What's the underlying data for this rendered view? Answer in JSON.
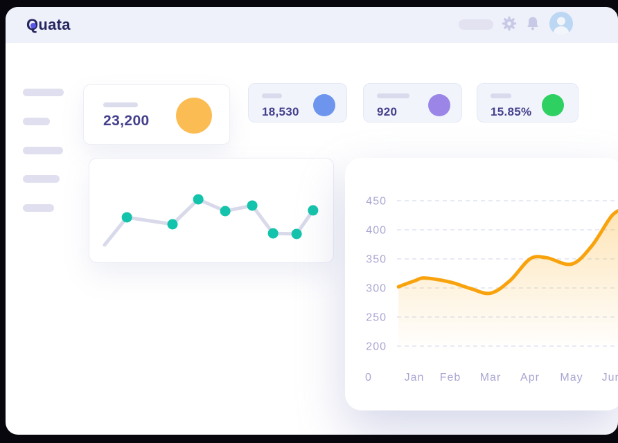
{
  "brand": {
    "name": "Quata",
    "color": "#26265E",
    "dot_color": "#5856E8"
  },
  "header": {
    "icons": [
      "nav-placeholder",
      "gear-icon",
      "bell-icon",
      "user-avatar"
    ]
  },
  "sidebar": {
    "items": 5,
    "note_labels": []
  },
  "stats": [
    {
      "value": "23,200",
      "accent": "#FBBD53"
    },
    {
      "value": "18,530",
      "accent": "#6D95EE"
    },
    {
      "value": "920",
      "accent": "#9B86E8"
    },
    {
      "value": "15.85%",
      "accent": "#2ED161"
    }
  ],
  "chart_data": [
    {
      "id": "sparkline",
      "type": "line",
      "title": "",
      "line_color": "#D8D9EA",
      "dot_color": "#14C3AB",
      "points_pct": [
        [
          6.2,
          82.2
        ],
        [
          15.3,
          55.9
        ],
        [
          33.9,
          62.5
        ],
        [
          44.4,
          38.8
        ],
        [
          55.4,
          50.0
        ],
        [
          66.4,
          44.7
        ],
        [
          74.9,
          71.1
        ],
        [
          84.5,
          71.7
        ],
        [
          91.2,
          49.3
        ]
      ]
    },
    {
      "id": "monthly-trend",
      "type": "area",
      "title": "",
      "x_ticks": [
        "0",
        "Jan",
        "Feb",
        "Mar",
        "Apr",
        "May",
        "Jun"
      ],
      "y_ticks": [
        "450",
        "400",
        "350",
        "300",
        "250",
        "200"
      ],
      "ylim": [
        200,
        450
      ],
      "grid": "dashed-horizontal",
      "legend": "none",
      "line_color": "#F8A30D",
      "fill_top": "rgba(249,166,15,0.30)",
      "fill_bottom": "rgba(249,166,15,0)",
      "label_color": "#A9A6D2",
      "grid_color": "#DFE4F0",
      "series": [
        {
          "name": "monthly-values",
          "months": [
            "Jan",
            "Feb",
            "Mar",
            "Apr",
            "May",
            "Jun"
          ],
          "values": [
            312,
            310,
            291,
            350,
            341,
            424
          ]
        }
      ],
      "curve_points": [
        [
          -0.44,
          302
        ],
        [
          0,
          312
        ],
        [
          0.3,
          317
        ],
        [
          1,
          310
        ],
        [
          1.5,
          299
        ],
        [
          2,
          291
        ],
        [
          2.5,
          313
        ],
        [
          3,
          350
        ],
        [
          3.4,
          352
        ],
        [
          4,
          341
        ],
        [
          4.5,
          372
        ],
        [
          5,
          424
        ],
        [
          5.3,
          436
        ]
      ]
    }
  ]
}
